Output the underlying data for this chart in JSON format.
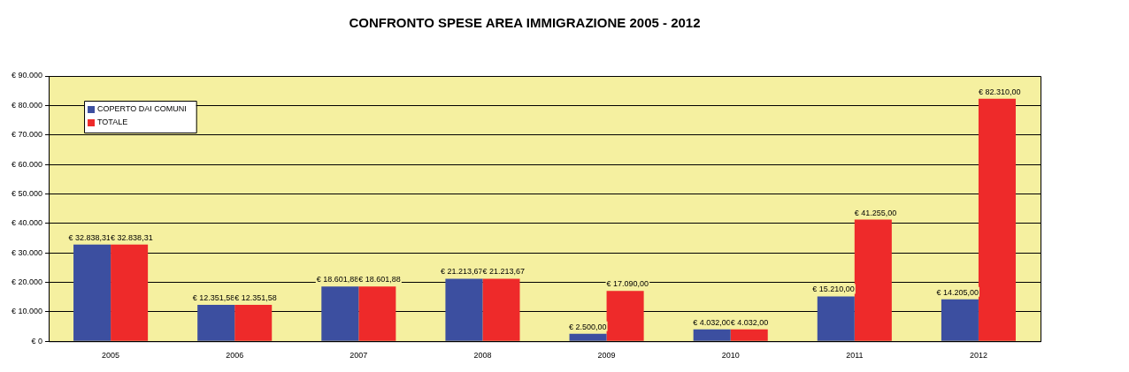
{
  "chart_data": {
    "type": "bar",
    "title": "CONFRONTO SPESE AREA IMMIGRAZIONE 2005 - 2012",
    "categories": [
      "2005",
      "2006",
      "2007",
      "2008",
      "2009",
      "2010",
      "2011",
      "2012"
    ],
    "series": [
      {
        "name": "COPERTO DAI COMUNI",
        "color": "#3c4fa0",
        "values": [
          32838.31,
          12351.58,
          18601.88,
          21213.67,
          2500,
          4032,
          15210,
          14205
        ],
        "value_labels": [
          "€ 32.838,31",
          "€ 12.351,58",
          "€ 18.601,88",
          "€ 21.213,67",
          "€ 2.500,00",
          "€ 4.032,00",
          "€ 15.210,00",
          "€ 14.205,00"
        ]
      },
      {
        "name": "TOTALE",
        "color": "#ee2a2a",
        "values": [
          32838.31,
          12351.58,
          18601.88,
          21213.67,
          17090,
          4032,
          41255,
          82310
        ],
        "value_labels": [
          "€ 32.838,31",
          "€ 12.351,58",
          "€ 18.601,88",
          "€ 21.213,67",
          "€ 17.090,00",
          "€ 4.032,00",
          "€ 41.255,00",
          "€ 82.310,00"
        ]
      }
    ],
    "ylim": [
      0,
      90000
    ],
    "yticks": [
      {
        "value": 0,
        "label": "€ 0"
      },
      {
        "value": 10000,
        "label": "€ 10.000"
      },
      {
        "value": 20000,
        "label": "€ 20.000"
      },
      {
        "value": 30000,
        "label": "€ 30.000"
      },
      {
        "value": 40000,
        "label": "€ 40.000"
      },
      {
        "value": 50000,
        "label": "€ 50.000"
      },
      {
        "value": 60000,
        "label": "€ 60.000"
      },
      {
        "value": 70000,
        "label": "€ 70.000"
      },
      {
        "value": 80000,
        "label": "€ 80.000"
      },
      {
        "value": 90000,
        "label": "€ 90.000"
      }
    ],
    "grid": "y",
    "legend": "top left"
  }
}
